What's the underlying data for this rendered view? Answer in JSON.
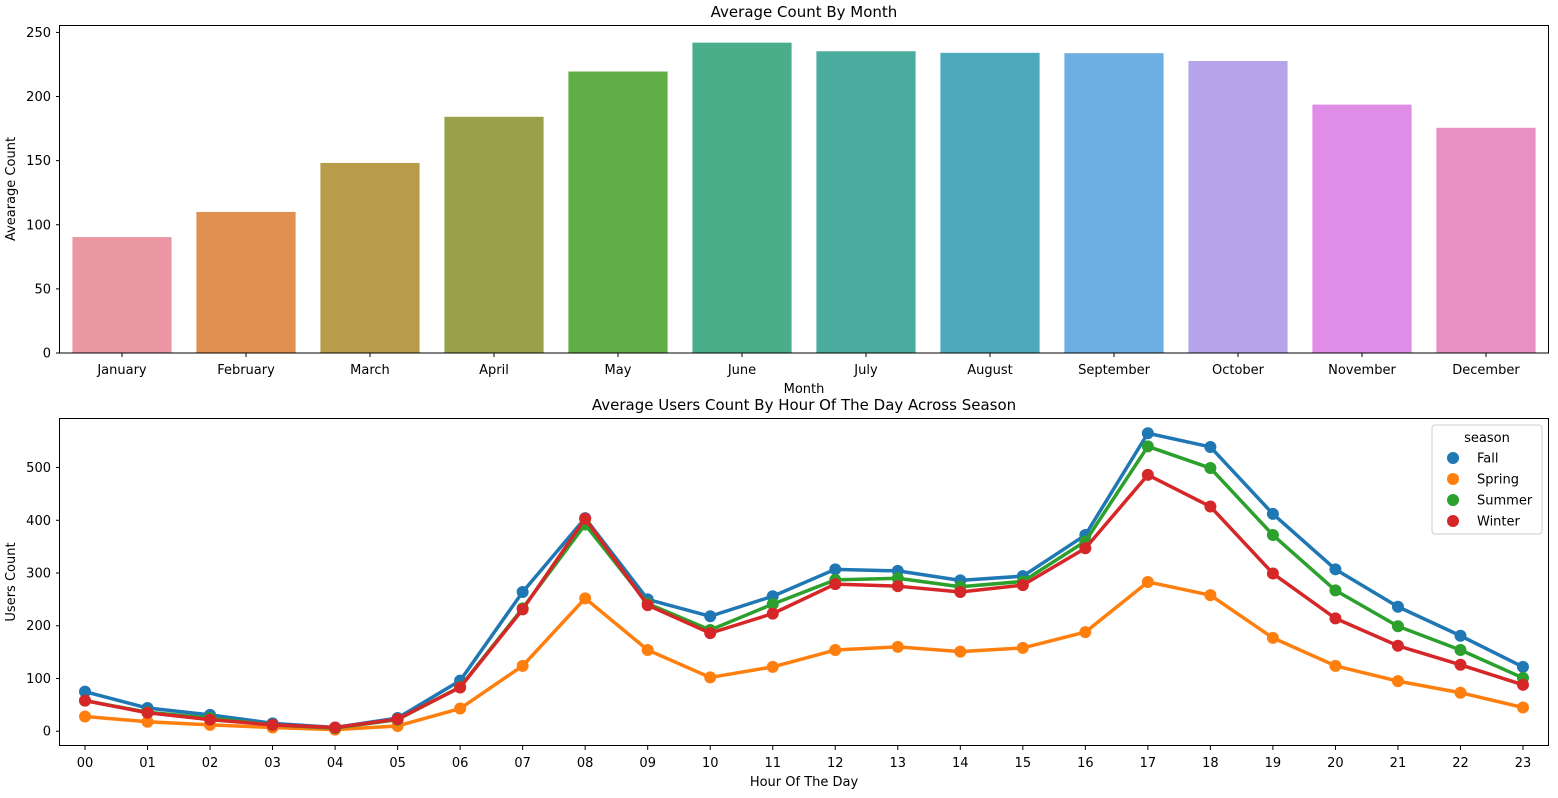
{
  "chart_data": [
    {
      "type": "bar",
      "title": "Average Count By Month",
      "xlabel": "Month",
      "ylabel": "Avearage Count",
      "categories": [
        "January",
        "February",
        "March",
        "April",
        "May",
        "June",
        "July",
        "August",
        "September",
        "October",
        "November",
        "December"
      ],
      "values": [
        90.4,
        110.0,
        148.2,
        184.2,
        219.5,
        242.0,
        235.3,
        234.1,
        233.8,
        227.7,
        193.7,
        175.6
      ],
      "ylim": [
        0,
        255
      ],
      "yticks": [
        0,
        50,
        100,
        150,
        200,
        250
      ],
      "colors": [
        "#ea96a3",
        "#e0914f",
        "#b89c49",
        "#98a14a",
        "#61ae47",
        "#49ae89",
        "#4aac9f",
        "#4daabb",
        "#6caee1",
        "#b5a4ea",
        "#e08de7",
        "#e88fc3"
      ],
      "grid": false
    },
    {
      "type": "line",
      "title": "Average Users Count By Hour Of The Day Across Season",
      "xlabel": "Hour Of The Day",
      "ylabel": "Users Count",
      "categories": [
        "00",
        "01",
        "02",
        "03",
        "04",
        "05",
        "06",
        "07",
        "08",
        "09",
        "10",
        "11",
        "12",
        "13",
        "14",
        "15",
        "16",
        "17",
        "18",
        "19",
        "20",
        "21",
        "22",
        "23"
      ],
      "ylim": [
        -28,
        592
      ],
      "yticks": [
        0,
        100,
        200,
        300,
        400,
        500
      ],
      "legend_title": "season",
      "legend_position": "top-right",
      "grid": false,
      "series": [
        {
          "name": "Fall",
          "color": "#1f77b4",
          "values": [
            75,
            44,
            31,
            15,
            7,
            25,
            96,
            264,
            404,
            250,
            218,
            256,
            307,
            304,
            286,
            294,
            372,
            565,
            539,
            412,
            307,
            236,
            181,
            122
          ]
        },
        {
          "name": "Spring",
          "color": "#ff7f0e",
          "values": [
            28,
            18,
            12,
            7,
            3,
            10,
            43,
            124,
            252,
            154,
            102,
            122,
            154,
            160,
            151,
            158,
            188,
            283,
            258,
            177,
            124,
            95,
            73,
            45
          ]
        },
        {
          "name": "Summer",
          "color": "#2ca02c",
          "values": [
            58,
            36,
            25,
            12,
            6,
            22,
            84,
            233,
            392,
            242,
            192,
            241,
            287,
            290,
            274,
            284,
            360,
            540,
            499,
            372,
            267,
            199,
            154,
            101
          ]
        },
        {
          "name": "Winter",
          "color": "#d62728",
          "values": [
            58,
            35,
            22,
            12,
            7,
            23,
            83,
            231,
            403,
            239,
            186,
            223,
            279,
            275,
            264,
            277,
            347,
            486,
            426,
            299,
            214,
            162,
            126,
            88
          ]
        }
      ]
    }
  ]
}
